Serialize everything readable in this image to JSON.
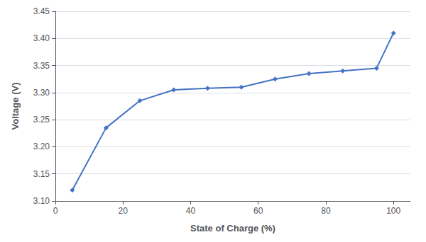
{
  "chart_data": {
    "type": "line",
    "xlabel": "State of Charge (%)",
    "ylabel": "Voltage (V)",
    "x": [
      5,
      15,
      25,
      35,
      45,
      55,
      65,
      75,
      85,
      95,
      100
    ],
    "values": [
      3.12,
      3.235,
      3.285,
      3.305,
      3.308,
      3.31,
      3.325,
      3.335,
      3.34,
      3.345,
      3.41
    ],
    "color": "#4472C4",
    "marker": "diamond",
    "xlim": [
      0,
      105
    ],
    "xticks": [
      0,
      20,
      40,
      60,
      80,
      100
    ],
    "ylim": [
      3.1,
      3.45
    ],
    "yticks": [
      {
        "value": 3.1,
        "label": "3.10"
      },
      3.15,
      {
        "value": 3.2,
        "label": "3.20"
      },
      3.25,
      {
        "value": 3.3,
        "label": "3.30"
      },
      3.35,
      {
        "value": 3.4,
        "label": "3.40"
      },
      3.45
    ],
    "grid": "y"
  }
}
